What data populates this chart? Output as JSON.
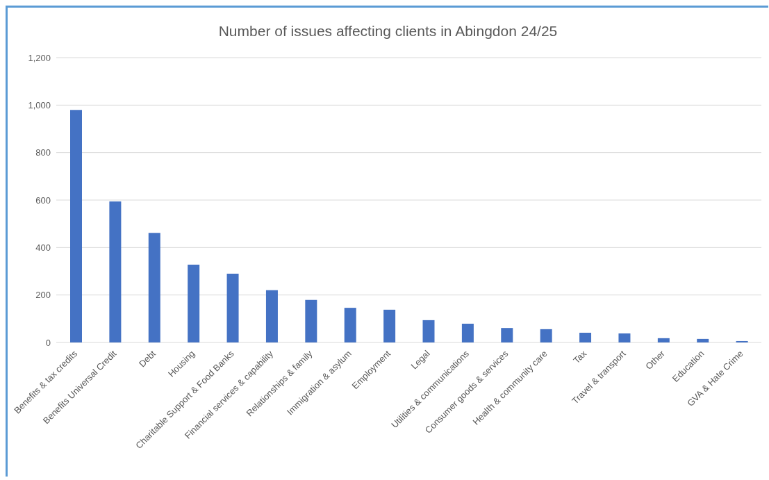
{
  "chart_data": {
    "type": "bar",
    "title": "Number of issues affecting clients in Abingdon 24/25",
    "categories": [
      "Benefits & tax credits",
      "Benefits Universal Credit",
      "Debt",
      "Housing",
      "Charitable Support & Food Banks",
      "Financial services & capability",
      "Relationships & family",
      "Immigration & asylum",
      "Employment",
      "Legal",
      "Utilities & communications",
      "Consumer goods & services",
      "Health & community care",
      "Tax",
      "Travel & transport",
      "Other",
      "Education",
      "GVA & Hate Crime"
    ],
    "values": [
      980,
      594,
      462,
      328,
      290,
      220,
      179,
      146,
      138,
      94,
      79,
      61,
      56,
      41,
      38,
      18,
      15,
      6
    ],
    "color": "#4472c4",
    "ylim": [
      0,
      1200
    ],
    "yticks": [
      {
        "value": 0,
        "label": "0"
      },
      {
        "value": 200,
        "label": "200"
      },
      {
        "value": 400,
        "label": "400"
      },
      {
        "value": 600,
        "label": "600"
      },
      {
        "value": 800,
        "label": "800"
      },
      {
        "value": 1000,
        "label": "1,000"
      },
      {
        "value": 1200,
        "label": "1,200"
      }
    ],
    "grid": "y"
  }
}
